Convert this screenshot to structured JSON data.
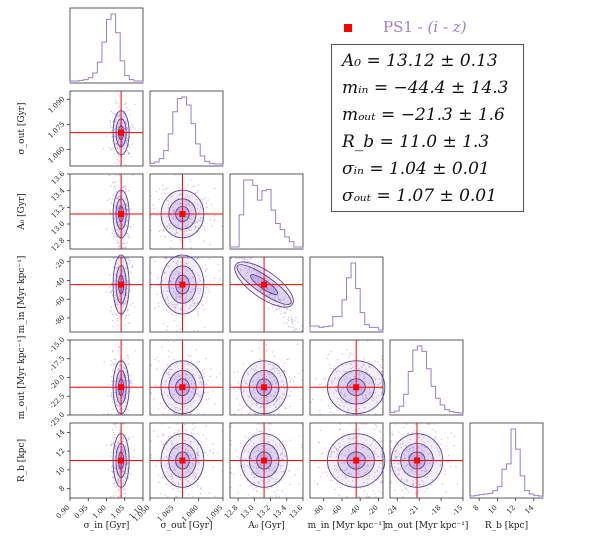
{
  "legend": {
    "marker_color": "#ff0000",
    "label_prefix": "PS1 - ",
    "label_italic": "(i - z)",
    "lines": [
      "A₀ = 13.12 ± 0.13",
      "mᵢₙ = −44.4 ± 14.3",
      "mₒᵤₜ = −21.3 ± 1.6",
      "R_b = 11.0 ± 1.3",
      "σᵢₙ = 1.04 ± 0.01",
      "σₒᵤₜ = 1.07 ± 0.01"
    ]
  },
  "chart_data": {
    "type": "scatter",
    "subtype": "corner-plot",
    "colors": {
      "samples": "#9b7fd1",
      "contour": "#5b3fa0",
      "truth": "#ff0000"
    },
    "parameters": [
      {
        "key": "sigma_in",
        "label": "σ_in [Gyr]",
        "range": [
          0.9,
          1.1
        ],
        "ticks": [
          "0.90",
          "0.95",
          "1.00",
          "1.05",
          "1.10"
        ],
        "truth": 1.04,
        "spread": 0.01
      },
      {
        "key": "sigma_out",
        "label": "σ_out [Gyr]",
        "range": [
          1.05,
          1.095
        ],
        "ticks": [
          "1.050",
          "1.065",
          "1.080",
          "1.095"
        ],
        "truth": 1.07,
        "spread": 0.006
      },
      {
        "key": "A0",
        "label": "A₀ [Gyr]",
        "range": [
          12.7,
          13.6
        ],
        "ticks": [
          "12.8",
          "13.0",
          "13.2",
          "13.4",
          "13.6"
        ],
        "truth": 13.12,
        "spread": 0.13
      },
      {
        "key": "m_in",
        "label": "m_in [Myr kpc⁻¹]",
        "range": [
          -95,
          -15
        ],
        "ticks": [
          "-80",
          "-60",
          "-40",
          "-20"
        ],
        "truth": -44.4,
        "spread": 14.3
      },
      {
        "key": "m_out",
        "label": "m_out [Myr kpc⁻¹]",
        "range": [
          -25,
          -15
        ],
        "ticks": [
          "-24",
          "-21",
          "-18",
          "-15"
        ],
        "truth": -21.3,
        "spread": 1.6
      },
      {
        "key": "R_b",
        "label": "R_b [kpc]",
        "range": [
          7,
          15
        ],
        "ticks": [
          "8",
          "10",
          "12",
          "14"
        ],
        "truth": 11.0,
        "spread": 1.3
      }
    ],
    "row_tick_labels": {
      "sigma_out": [
        "1.060",
        "1.075",
        "1.090"
      ],
      "A0": [
        "12.8",
        "13.0",
        "13.2",
        "13.4",
        "13.6"
      ],
      "m_in": [
        "-80",
        "-60",
        "-40",
        "-20"
      ],
      "m_out": [
        "-25.0",
        "-22.5",
        "-20.0",
        "-17.5",
        "-15.0"
      ],
      "R_b": [
        "8",
        "10",
        "12",
        "14"
      ]
    },
    "histograms": [
      [
        0,
        0,
        1,
        2,
        5,
        12,
        28,
        58,
        92,
        100,
        72,
        30,
        8,
        2,
        0,
        0
      ],
      [
        1,
        3,
        8,
        20,
        45,
        78,
        98,
        100,
        88,
        60,
        30,
        12,
        4,
        1,
        0,
        0
      ],
      [
        0,
        0,
        48,
        100,
        100,
        92,
        70,
        84,
        86,
        55,
        35,
        26,
        15,
        8,
        0,
        0
      ],
      [
        6,
        6,
        4,
        5,
        6,
        20,
        20,
        45,
        78,
        100,
        62,
        26,
        8,
        4,
        4,
        0
      ],
      [
        1,
        3,
        10,
        28,
        62,
        94,
        100,
        92,
        66,
        40,
        22,
        12,
        5,
        2,
        1,
        0
      ],
      [
        0,
        1,
        2,
        3,
        4,
        8,
        14,
        40,
        48,
        100,
        70,
        30,
        8,
        3,
        1,
        0
      ]
    ]
  }
}
